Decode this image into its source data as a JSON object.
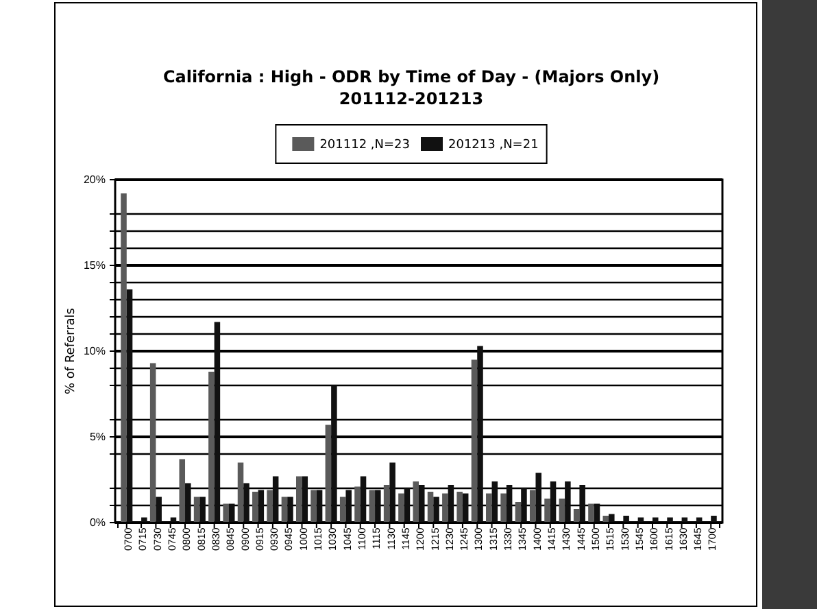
{
  "chart_data": {
    "type": "bar",
    "title": "California : High  - ODR by Time of Day - (Majors Only)",
    "subtitle": "201112-201213",
    "ylabel": "% of Referrals",
    "categories": [
      "0700",
      "0715",
      "0730",
      "0745",
      "0800",
      "0815",
      "0830",
      "0845",
      "0900",
      "0915",
      "0930",
      "0945",
      "1000",
      "1015",
      "1030",
      "1045",
      "1100",
      "1115",
      "1130",
      "1145",
      "1200",
      "1215",
      "1230",
      "1245",
      "1300",
      "1315",
      "1330",
      "1345",
      "1400",
      "1415",
      "1430",
      "1445",
      "1500",
      "1515",
      "1530",
      "1545",
      "1600",
      "1615",
      "1630",
      "1645",
      "1700"
    ],
    "series": [
      {
        "name": "201112 ,N=23",
        "color": "#5a5a5a",
        "values": [
          19.2,
          0,
          9.3,
          0,
          3.7,
          1.5,
          8.8,
          1.1,
          3.5,
          1.8,
          1.9,
          1.5,
          2.7,
          1.9,
          5.7,
          1.5,
          2.1,
          1.9,
          2.2,
          1.7,
          2.4,
          1.8,
          1.7,
          1.8,
          9.5,
          1.7,
          1.7,
          1.2,
          1.9,
          1.4,
          1.4,
          0.8,
          1.1,
          0.4,
          0,
          0,
          0,
          0,
          0,
          0,
          0
        ]
      },
      {
        "name": "201213 ,N=21",
        "color": "#111111",
        "values": [
          13.6,
          0.3,
          1.5,
          0.3,
          2.3,
          1.5,
          11.7,
          1.1,
          2.3,
          1.9,
          2.7,
          1.5,
          2.7,
          1.9,
          8.0,
          1.9,
          2.7,
          1.9,
          3.5,
          2.0,
          2.2,
          1.5,
          2.2,
          1.7,
          10.3,
          2.4,
          2.2,
          2.0,
          2.9,
          2.4,
          2.4,
          2.2,
          1.1,
          0.5,
          0.4,
          0.3,
          0.3,
          0.3,
          0.3,
          0.3,
          0.4
        ]
      }
    ],
    "ylim": [
      0,
      20
    ],
    "yticks": [
      {
        "value": 0,
        "label": "0%"
      },
      {
        "value": 1,
        "label": null
      },
      {
        "value": 2,
        "label": null
      },
      {
        "value": 4,
        "label": null
      },
      {
        "value": 5,
        "label": "5%"
      },
      {
        "value": 6,
        "label": null
      },
      {
        "value": 8,
        "label": null
      },
      {
        "value": 9,
        "label": null
      },
      {
        "value": 10,
        "label": "10%"
      },
      {
        "value": 11,
        "label": null
      },
      {
        "value": 12,
        "label": null
      },
      {
        "value": 13,
        "label": null
      },
      {
        "value": 14,
        "label": null
      },
      {
        "value": 15,
        "label": "15%"
      },
      {
        "value": 16,
        "label": null
      },
      {
        "value": 17,
        "label": null
      },
      {
        "value": 18,
        "label": null
      },
      {
        "value": 20,
        "label": "20%"
      }
    ],
    "grid": "y",
    "legend": "top"
  }
}
